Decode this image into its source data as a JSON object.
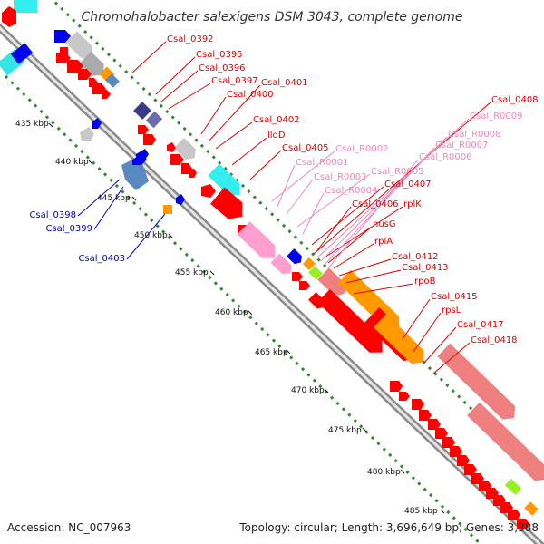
{
  "title": "Chromohalobacter salexigens DSM 3043, complete genome",
  "accession": "Accession: NC_007963",
  "topology": "Topology: circular; Length: 3,696,649 bp; Genes: 3,388",
  "colors": {
    "backbone": "#909090",
    "gc_dots": "#338833",
    "label_red": "#dd0000",
    "label_pink": "#ee88bb",
    "label_blue": "#0000bb",
    "cds_red": "#ff0000",
    "pink": "#ff9fd0",
    "salmon": "#f08080",
    "orange": "#ff9900",
    "cyan": "#33eeee",
    "blue": "#0000ee",
    "navy": "#3a3a8a",
    "steel": "#5a88c0",
    "gray": "#c8c8c8",
    "lime": "#99ee22"
  },
  "ticks": [
    {
      "label": "435 kbp"
    },
    {
      "label": "440 kbp"
    },
    {
      "label": "445 kbp"
    },
    {
      "label": "450 kbp"
    },
    {
      "label": "455 kbp"
    },
    {
      "label": "460 kbp"
    },
    {
      "label": "465 kbp"
    },
    {
      "label": "470 kbp"
    },
    {
      "label": "475 kbp"
    },
    {
      "label": "480 kbp"
    },
    {
      "label": "485 kbp"
    }
  ],
  "labels": [
    {
      "text": "Csal_0392",
      "group": "red"
    },
    {
      "text": "Csal_0395",
      "group": "red"
    },
    {
      "text": "Csal_0396",
      "group": "red"
    },
    {
      "text": "Csal_0397",
      "group": "red"
    },
    {
      "text": "Csal_0401",
      "group": "red"
    },
    {
      "text": "Csal_0400",
      "group": "red"
    },
    {
      "text": "Csal_0402",
      "group": "red"
    },
    {
      "text": "lldD",
      "group": "red"
    },
    {
      "text": "Csal_0405",
      "group": "red"
    },
    {
      "text": "Csal_R0002",
      "group": "pink"
    },
    {
      "text": "Csal_R0001",
      "group": "pink"
    },
    {
      "text": "Csal_R0003",
      "group": "pink"
    },
    {
      "text": "Csal_R0005",
      "group": "pink"
    },
    {
      "text": "Csal_R0004",
      "group": "pink"
    },
    {
      "text": "Csal_0407",
      "group": "red"
    },
    {
      "text": "Csal_0406",
      "group": "red"
    },
    {
      "text": "rplK",
      "group": "red"
    },
    {
      "text": "nusG",
      "group": "red"
    },
    {
      "text": "rplA",
      "group": "red"
    },
    {
      "text": "Csal_0412",
      "group": "red"
    },
    {
      "text": "Csal_0413",
      "group": "red"
    },
    {
      "text": "rpoB",
      "group": "red"
    },
    {
      "text": "Csal_0415",
      "group": "red"
    },
    {
      "text": "rpsL",
      "group": "red"
    },
    {
      "text": "Csal_0417",
      "group": "red"
    },
    {
      "text": "Csal_0418",
      "group": "red"
    },
    {
      "text": "Csal_0408",
      "group": "red"
    },
    {
      "text": "Csal_R0009",
      "group": "pink"
    },
    {
      "text": "Csal_R0008",
      "group": "pink"
    },
    {
      "text": "Csal_R0007",
      "group": "pink"
    },
    {
      "text": "Csal_R0006",
      "group": "pink"
    },
    {
      "text": "Csal_0398",
      "group": "blue"
    },
    {
      "text": "Csal_0399",
      "group": "blue"
    },
    {
      "text": "Csal_0403",
      "group": "blue"
    }
  ]
}
